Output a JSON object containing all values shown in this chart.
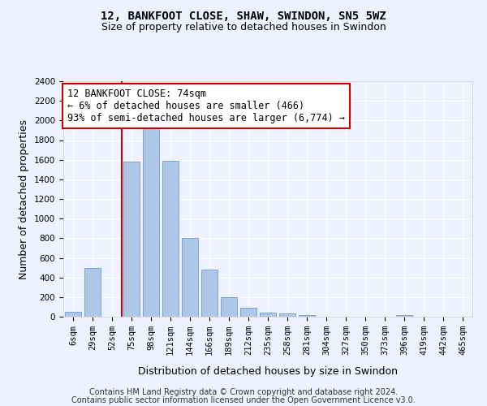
{
  "title": "12, BANKFOOT CLOSE, SHAW, SWINDON, SN5 5WZ",
  "subtitle": "Size of property relative to detached houses in Swindon",
  "xlabel": "Distribution of detached houses by size in Swindon",
  "ylabel": "Number of detached properties",
  "categories": [
    "6sqm",
    "29sqm",
    "52sqm",
    "75sqm",
    "98sqm",
    "121sqm",
    "144sqm",
    "166sqm",
    "189sqm",
    "212sqm",
    "235sqm",
    "258sqm",
    "281sqm",
    "304sqm",
    "327sqm",
    "350sqm",
    "373sqm",
    "396sqm",
    "419sqm",
    "442sqm",
    "465sqm"
  ],
  "values": [
    50,
    500,
    0,
    1580,
    1950,
    1590,
    800,
    480,
    200,
    90,
    40,
    30,
    20,
    0,
    0,
    0,
    0,
    20,
    0,
    0,
    0
  ],
  "bar_color": "#aec6e8",
  "bar_edge_color": "#5a8fc0",
  "vline_x_index": 3,
  "vline_color": "#cc0000",
  "annotation_text": "12 BANKFOOT CLOSE: 74sqm\n← 6% of detached houses are smaller (466)\n93% of semi-detached houses are larger (6,774) →",
  "annotation_box_color": "#ffffff",
  "annotation_box_edge": "#cc0000",
  "ylim": [
    0,
    2400
  ],
  "yticks": [
    0,
    200,
    400,
    600,
    800,
    1000,
    1200,
    1400,
    1600,
    1800,
    2000,
    2200,
    2400
  ],
  "footer_line1": "Contains HM Land Registry data © Crown copyright and database right 2024.",
  "footer_line2": "Contains public sector information licensed under the Open Government Licence v3.0.",
  "background_color": "#eef2ff",
  "grid_color": "#ffffff",
  "title_fontsize": 10,
  "subtitle_fontsize": 9,
  "axis_label_fontsize": 9,
  "tick_fontsize": 7.5,
  "annotation_fontsize": 8.5,
  "footer_fontsize": 7
}
